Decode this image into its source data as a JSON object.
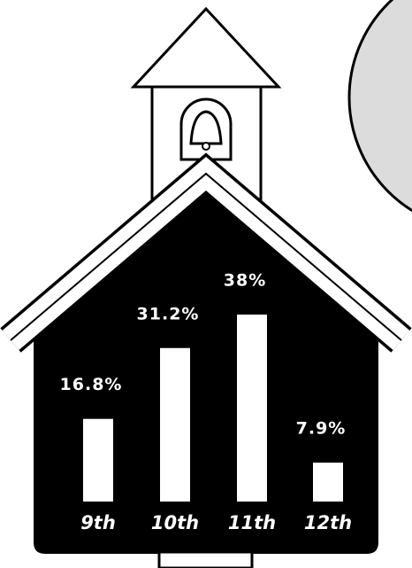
{
  "chart_data": {
    "type": "bar",
    "categories": [
      "9th",
      "10th",
      "11th",
      "12th"
    ],
    "values": [
      16.8,
      31.2,
      38,
      7.9
    ],
    "value_labels": [
      "16.8%",
      "31.2%",
      "38%",
      "7.9%"
    ],
    "color": "#ffffff"
  }
}
